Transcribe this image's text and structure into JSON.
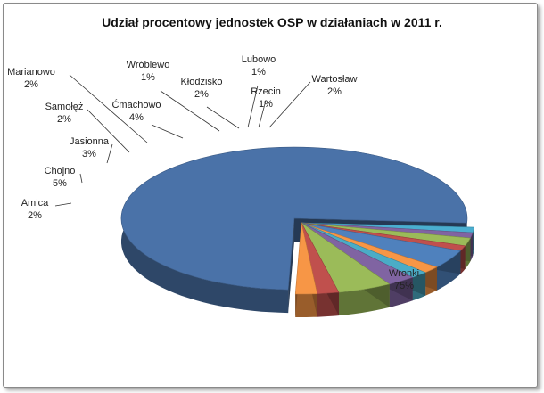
{
  "chart_data": {
    "type": "pie",
    "title": "Udział procentowy jednostek OSP w działaniach w 2011 r.",
    "legend": "none",
    "slices": [
      {
        "label": "Wronki",
        "value_label": "75%",
        "value": 75,
        "color": "#4a72a8"
      },
      {
        "label": "Rzecin",
        "value_label": "1%",
        "value": 1.2,
        "color": "#4aaed0"
      },
      {
        "label": "Lubowo",
        "value_label": "1%",
        "value": 1.2,
        "color": "#8064a2"
      },
      {
        "label": "Kłodzisko",
        "value_label": "2%",
        "value": 1.8,
        "color": "#9bbb59"
      },
      {
        "label": "Wróblewo",
        "value_label": "1%",
        "value": 1.2,
        "color": "#c0504d"
      },
      {
        "label": "Ćmachowo",
        "value_label": "4%",
        "value": 4.2,
        "color": "#4f81bd"
      },
      {
        "label": "Marianowo",
        "value_label": "2%",
        "value": 1.6,
        "color": "#f79646"
      },
      {
        "label": "Samołęż",
        "value_label": "2%",
        "value": 1.6,
        "color": "#4bacc6"
      },
      {
        "label": "Jasionna",
        "value_label": "3%",
        "value": 2.6,
        "color": "#8064a2"
      },
      {
        "label": "Chojno",
        "value_label": "5%",
        "value": 5.0,
        "color": "#9bbb59"
      },
      {
        "label": "Amica",
        "value_label": "2%",
        "value": 2.0,
        "color": "#c0504d"
      },
      {
        "label": "Wartosław",
        "value_label": "2%",
        "value": 2.0,
        "color": "#f79646"
      }
    ]
  }
}
